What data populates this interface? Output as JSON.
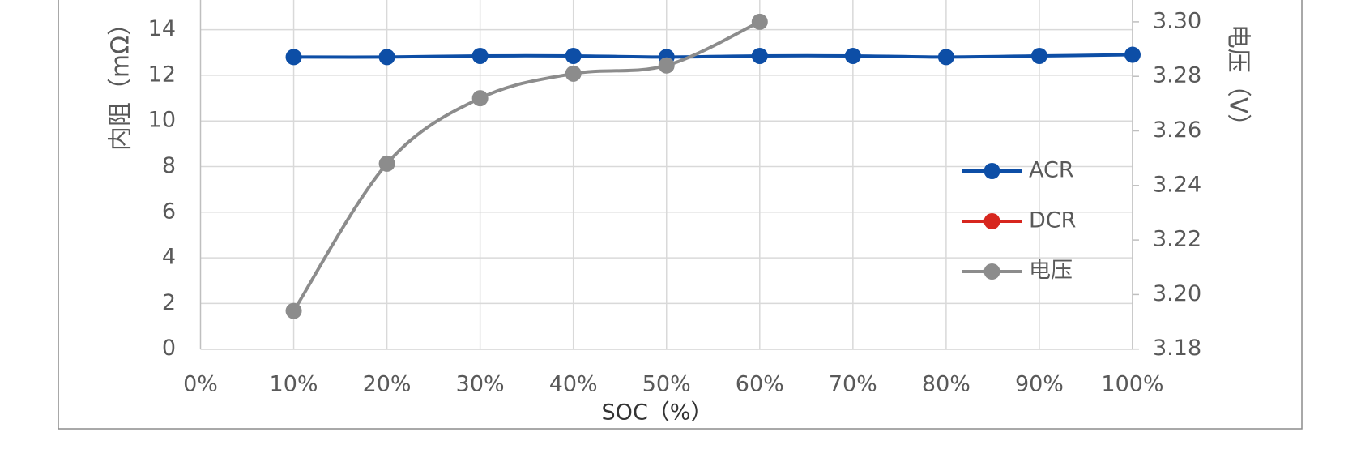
{
  "chart_data": {
    "type": "line",
    "xlabel": "SOC（%）",
    "ylabel": "内阻（mΩ）",
    "y2label": "电压（V）",
    "x": [
      10,
      20,
      30,
      40,
      50,
      60,
      70,
      80,
      90,
      100
    ],
    "series": [
      {
        "name": "ACR",
        "color": "#0d4ea6",
        "values": [
          12.8,
          12.8,
          12.85,
          12.85,
          12.8,
          12.85,
          12.85,
          12.8,
          12.85,
          12.9
        ]
      },
      {
        "name": "DCR",
        "color": "#d7261e",
        "values": [
          null,
          null,
          null,
          null,
          null,
          null,
          null,
          null,
          null,
          null
        ]
      },
      {
        "name": "电压",
        "color": "#8c8c8c",
        "axis": "y2",
        "values": [
          3.194,
          3.248,
          3.272,
          3.281,
          3.284,
          3.3,
          null,
          null,
          null,
          null
        ]
      }
    ],
    "xlim": [
      0,
      100
    ],
    "xticks": [
      {
        "value": 0,
        "label": "0%"
      },
      {
        "value": 10,
        "label": "10%"
      },
      {
        "value": 20,
        "label": "20%"
      },
      {
        "value": 30,
        "label": "30%"
      },
      {
        "value": 40,
        "label": "40%"
      },
      {
        "value": 50,
        "label": "50%"
      },
      {
        "value": 60,
        "label": "60%"
      },
      {
        "value": 70,
        "label": "70%"
      },
      {
        "value": 80,
        "label": "80%"
      },
      {
        "value": 90,
        "label": "90%"
      },
      {
        "value": 100,
        "label": "100%"
      }
    ],
    "ylim": [
      0,
      15.3
    ],
    "yticks": [
      0,
      2,
      4,
      6,
      8,
      10,
      12,
      14
    ],
    "y2lim": [
      3.18,
      3.308
    ],
    "y2ticks": [
      {
        "value": 3.18,
        "label": "3.18"
      },
      {
        "value": 3.2,
        "label": "3.20"
      },
      {
        "value": 3.22,
        "label": "3.22"
      },
      {
        "value": 3.24,
        "label": "3.24"
      },
      {
        "value": 3.26,
        "label": "3.26"
      },
      {
        "value": 3.28,
        "label": "3.28"
      },
      {
        "value": 3.3,
        "label": "3.30"
      }
    ],
    "grid": true,
    "legend": "right"
  }
}
